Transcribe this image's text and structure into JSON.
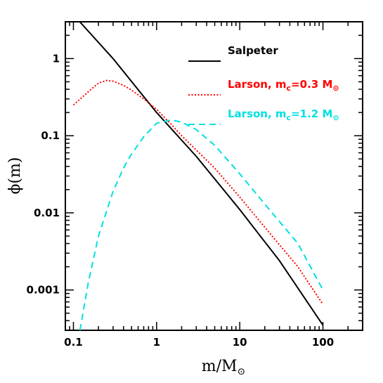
{
  "chart_data": {
    "type": "line",
    "title": "",
    "xlabel": {
      "main": "m/M",
      "sub": "⊙"
    },
    "ylabel": "ϕ(m)",
    "xscale": "log",
    "yscale": "log",
    "xlim": [
      0.08,
      300
    ],
    "ylim": [
      0.0003,
      3
    ],
    "x_ticks": [
      {
        "value": 0.1,
        "label": "0.1"
      },
      {
        "value": 1,
        "label": "1"
      },
      {
        "value": 10,
        "label": "10"
      },
      {
        "value": 100,
        "label": "100"
      }
    ],
    "y_ticks": [
      {
        "value": 0.001,
        "label": "0.001"
      },
      {
        "value": 0.01,
        "label": "0.01"
      },
      {
        "value": 0.1,
        "label": "0.1"
      },
      {
        "value": 1,
        "label": "1"
      }
    ],
    "grid": false,
    "legend_position": "top-right",
    "series": [
      {
        "name": "Salpeter",
        "legend": {
          "text": "Salpeter",
          "sub": "",
          "suffix": ""
        },
        "color": "#000000",
        "dash": "solid",
        "x": [
          0.1,
          0.3,
          1,
          3,
          10,
          30,
          100
        ],
        "y": [
          3.7,
          1.0,
          0.2,
          0.054,
          0.011,
          0.0024,
          0.00035
        ]
      },
      {
        "name": "Larson, m_c=0.3 M⊙",
        "legend": {
          "text": "Larson, m",
          "sub": "c",
          "suffix": "=0.3 M",
          "sub2": "⊙"
        },
        "color": "#ff0000",
        "dash": "dotted",
        "x": [
          0.1,
          0.15,
          0.2,
          0.25,
          0.3,
          0.4,
          0.5,
          0.7,
          1,
          1.5,
          2,
          3,
          5,
          10,
          20,
          50,
          100
        ],
        "y": [
          0.25,
          0.37,
          0.48,
          0.52,
          0.51,
          0.45,
          0.39,
          0.3,
          0.22,
          0.14,
          0.1,
          0.065,
          0.038,
          0.016,
          0.0065,
          0.002,
          0.00065
        ]
      },
      {
        "name": "Larson, m_c=1.2 M⊙",
        "legend": {
          "text": "Larson, m",
          "sub": "c",
          "suffix": "=1.2 M",
          "sub2": "⊙"
        },
        "color": "#00e0e0",
        "dash": "dashed",
        "x": [
          0.12,
          0.15,
          0.2,
          0.3,
          0.4,
          0.5,
          0.7,
          1,
          1.5,
          2,
          3,
          5,
          10,
          20,
          50,
          100
        ],
        "y": [
          0.0003,
          0.0012,
          0.005,
          0.019,
          0.038,
          0.058,
          0.097,
          0.145,
          0.16,
          0.15,
          0.12,
          0.075,
          0.032,
          0.013,
          0.004,
          0.001
        ]
      }
    ]
  }
}
